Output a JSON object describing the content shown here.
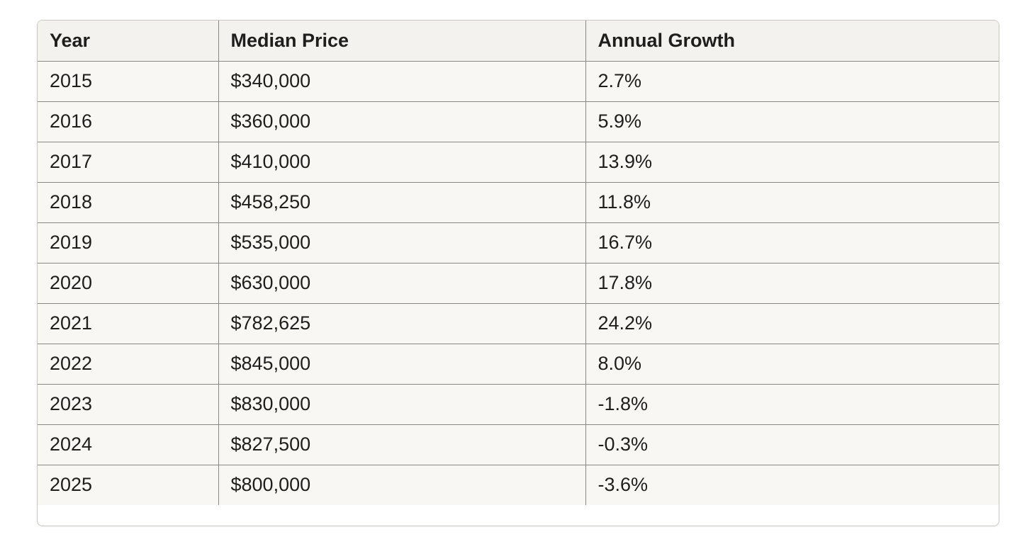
{
  "table": {
    "headers": {
      "year": "Year",
      "price": "Median Price",
      "growth": "Annual Growth"
    },
    "rows": [
      {
        "year": "2015",
        "price": "$340,000",
        "growth": "2.7%"
      },
      {
        "year": "2016",
        "price": "$360,000",
        "growth": "5.9%"
      },
      {
        "year": "2017",
        "price": "$410,000",
        "growth": "13.9%"
      },
      {
        "year": "2018",
        "price": "$458,250",
        "growth": "11.8%"
      },
      {
        "year": "2019",
        "price": "$535,000",
        "growth": "16.7%"
      },
      {
        "year": "2020",
        "price": "$630,000",
        "growth": "17.8%"
      },
      {
        "year": "2021",
        "price": "$782,625",
        "growth": "24.2%"
      },
      {
        "year": "2022",
        "price": "$845,000",
        "growth": "8.0%"
      },
      {
        "year": "2023",
        "price": "$830,000",
        "growth": "-1.8%"
      },
      {
        "year": "2024",
        "price": "$827,500",
        "growth": "-0.3%"
      },
      {
        "year": "2025",
        "price": "$800,000",
        "growth": "-3.6%"
      }
    ]
  }
}
